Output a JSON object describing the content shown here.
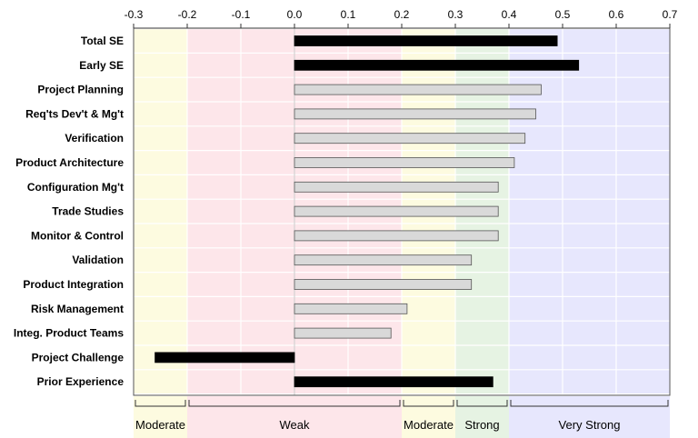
{
  "chart_data": {
    "type": "bar",
    "orientation": "horizontal",
    "xlim": [
      -0.3,
      0.7
    ],
    "xticks": [
      "-0.3",
      "-0.2",
      "-0.1",
      "0.0",
      "0.1",
      "0.2",
      "0.3",
      "0.4",
      "0.5",
      "0.6",
      "0.7"
    ],
    "xtick_values": [
      -0.3,
      -0.2,
      -0.1,
      0.0,
      0.1,
      0.2,
      0.3,
      0.4,
      0.5,
      0.6,
      0.7
    ],
    "xaxis_position": "top",
    "grid": true,
    "categories": [
      "Total SE",
      "Early SE",
      "Project Planning",
      "Req'ts Dev't & Mg't",
      "Verification",
      "Product Architecture",
      "Configuration Mg't",
      "Trade Studies",
      "Monitor & Control",
      "Validation",
      "Product Integration",
      "Risk Management",
      "Integ. Product Teams",
      "Project Challenge",
      "Prior Experience"
    ],
    "values": [
      0.49,
      0.53,
      0.46,
      0.45,
      0.43,
      0.41,
      0.38,
      0.38,
      0.38,
      0.33,
      0.33,
      0.21,
      0.18,
      -0.26,
      0.37
    ],
    "bar_styles": [
      "dark",
      "dark",
      "light",
      "light",
      "light",
      "light",
      "light",
      "light",
      "light",
      "light",
      "light",
      "light",
      "light",
      "dark",
      "dark"
    ],
    "colors": {
      "dark": "#000000",
      "light": "#d9d9d9",
      "light_border": "#555555"
    },
    "bands": [
      {
        "label": "Moderate",
        "from": -0.3,
        "to": -0.2,
        "color": "#fdfbe0"
      },
      {
        "label": "Weak",
        "from": -0.2,
        "to": 0.2,
        "color": "#fde6ea"
      },
      {
        "label": "Moderate",
        "from": 0.2,
        "to": 0.3,
        "color": "#fdfbe0"
      },
      {
        "label": "Strong",
        "from": 0.3,
        "to": 0.4,
        "color": "#e6f3e3"
      },
      {
        "label": "Very Strong",
        "from": 0.4,
        "to": 0.7,
        "color": "#e7e7fd"
      }
    ]
  }
}
